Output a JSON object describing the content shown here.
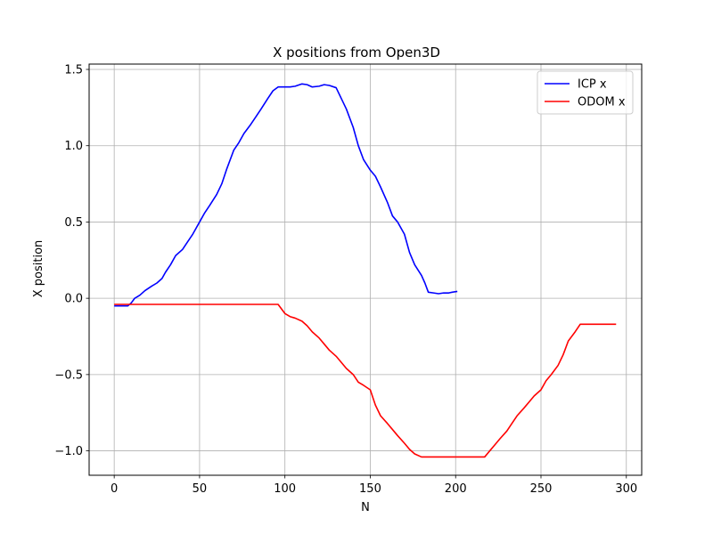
{
  "chart_data": {
    "type": "line",
    "title": "X positions from Open3D",
    "xlabel": "N",
    "ylabel": "X position",
    "xlim": [
      -14.7,
      309
    ],
    "ylim": [
      -1.16,
      1.535
    ],
    "xticks": [
      0,
      50,
      100,
      150,
      200,
      250,
      300
    ],
    "xtick_labels": [
      "0",
      "50",
      "100",
      "150",
      "200",
      "250",
      "300"
    ],
    "yticks": [
      -1.0,
      -0.5,
      0.0,
      0.5,
      1.0,
      1.5
    ],
    "ytick_labels": [
      "−1.0",
      "−0.5",
      "0.0",
      "0.5",
      "1.0",
      "1.5"
    ],
    "grid": true,
    "legend_position": "top-right",
    "series": [
      {
        "name": "ICP x",
        "color": "#0000ff",
        "x": [
          0,
          5,
          8,
          10,
          12,
          15,
          18,
          22,
          25,
          28,
          30,
          33,
          36,
          40,
          43,
          46,
          50,
          53,
          56,
          60,
          63,
          66,
          70,
          73,
          76,
          80,
          83,
          86,
          90,
          93,
          96,
          98,
          100,
          103,
          106,
          110,
          113,
          116,
          120,
          123,
          126,
          130,
          133,
          136,
          140,
          143,
          146,
          150,
          153,
          156,
          160,
          163,
          166,
          170,
          173,
          176,
          180,
          182,
          184,
          187,
          190,
          193,
          196,
          198,
          201
        ],
        "values": [
          -0.05,
          -0.05,
          -0.05,
          -0.03,
          0.0,
          0.02,
          0.05,
          0.08,
          0.1,
          0.13,
          0.17,
          0.22,
          0.28,
          0.32,
          0.37,
          0.42,
          0.5,
          0.56,
          0.61,
          0.68,
          0.75,
          0.85,
          0.97,
          1.02,
          1.08,
          1.14,
          1.19,
          1.24,
          1.31,
          1.36,
          1.385,
          1.385,
          1.385,
          1.385,
          1.39,
          1.405,
          1.4,
          1.385,
          1.39,
          1.4,
          1.395,
          1.38,
          1.31,
          1.24,
          1.12,
          1.0,
          0.91,
          0.84,
          0.8,
          0.73,
          0.63,
          0.54,
          0.5,
          0.42,
          0.3,
          0.22,
          0.15,
          0.1,
          0.04,
          0.035,
          0.03,
          0.035,
          0.035,
          0.04,
          0.045
        ]
      },
      {
        "name": "ODOM x",
        "color": "#ff0000",
        "x": [
          0,
          20,
          40,
          60,
          80,
          96,
          100,
          103,
          106,
          110,
          113,
          116,
          120,
          123,
          126,
          130,
          133,
          136,
          140,
          143,
          146,
          150,
          153,
          156,
          160,
          163,
          166,
          170,
          173,
          176,
          180,
          183,
          190,
          200,
          210,
          217,
          220,
          223,
          226,
          230,
          233,
          236,
          240,
          243,
          246,
          250,
          253,
          256,
          260,
          263,
          266,
          270,
          273,
          280,
          290,
          294
        ],
        "values": [
          -0.04,
          -0.04,
          -0.04,
          -0.04,
          -0.04,
          -0.04,
          -0.1,
          -0.12,
          -0.13,
          -0.15,
          -0.18,
          -0.22,
          -0.26,
          -0.3,
          -0.34,
          -0.38,
          -0.42,
          -0.46,
          -0.5,
          -0.55,
          -0.57,
          -0.6,
          -0.7,
          -0.77,
          -0.82,
          -0.86,
          -0.9,
          -0.95,
          -0.99,
          -1.02,
          -1.04,
          -1.04,
          -1.04,
          -1.04,
          -1.04,
          -1.04,
          -1.0,
          -0.96,
          -0.92,
          -0.87,
          -0.82,
          -0.77,
          -0.72,
          -0.68,
          -0.64,
          -0.6,
          -0.54,
          -0.5,
          -0.44,
          -0.37,
          -0.28,
          -0.22,
          -0.17,
          -0.17,
          -0.17,
          -0.17
        ]
      }
    ]
  }
}
